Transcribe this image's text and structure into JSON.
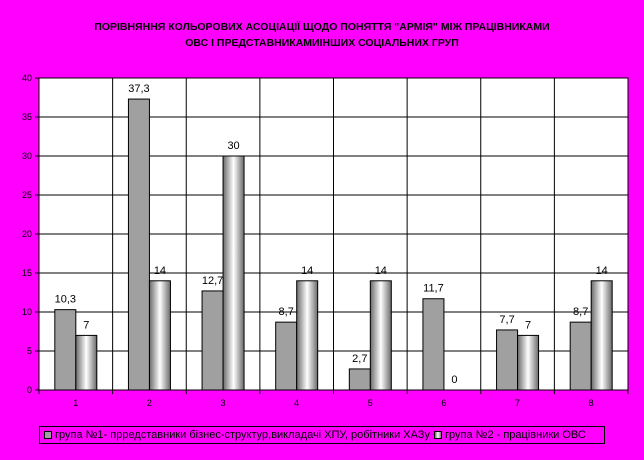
{
  "chart_data": {
    "type": "bar",
    "title_lines": [
      "ПОРІВНЯННЯ КОЛЬОРОВИХ АСОЦІАЦІЇ ЩОДО ПОНЯТТЯ \"АРМІЯ\" МІЖ ПРАЦІВНИКАМИ",
      "ОВС І ПРЕДСТАВНИКАМИІНШИХ СОЦІАЛЬНИХ ГРУП"
    ],
    "categories": [
      "1",
      "2",
      "3",
      "4",
      "5",
      "6",
      "7",
      "8"
    ],
    "series": [
      {
        "name": "група №1- прредставники бізнес-структур,викладачі ХПУ, робітники ХАЗу",
        "values": [
          10.3,
          37.3,
          12.7,
          8.7,
          2.7,
          11.7,
          7.7,
          8.7
        ],
        "labels": [
          "10,3",
          "37,3",
          "12,7",
          "8,7",
          "2,7",
          "11,7",
          "7,7",
          "8,7"
        ],
        "color": "#a0a0a0"
      },
      {
        "name": "група №2 - працівники ОВС",
        "values": [
          7,
          14,
          30,
          14,
          14,
          0,
          7,
          14
        ],
        "labels": [
          "7",
          "14",
          "30",
          "14",
          "14",
          "0",
          "7",
          "14"
        ],
        "color": "#c8c8c8"
      }
    ],
    "yticks": [
      "0",
      "5",
      "10",
      "15",
      "20",
      "25",
      "30",
      "35",
      "40"
    ],
    "ylim": [
      0,
      40
    ],
    "grid": true,
    "legend": "bottom",
    "xlabel": "",
    "ylabel": ""
  },
  "colors": {
    "background": "#ff00ff",
    "plot_area": "#ffffff",
    "series1": "#a0a0a0",
    "series2_edge": "#707070",
    "series2_center": "#ffffff"
  }
}
